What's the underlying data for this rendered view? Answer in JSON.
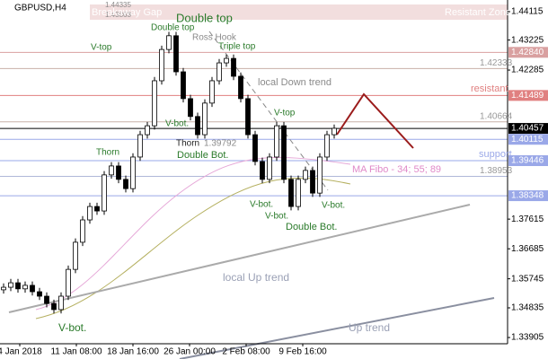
{
  "chart_data": {
    "type": "candlestick",
    "title": "GBPUSD,H4",
    "open": [
      1.354,
      1.3548,
      1.3562,
      1.3543,
      1.3554,
      1.3534,
      1.352,
      1.3497,
      1.3478,
      1.352,
      1.3604,
      1.3689,
      1.3759,
      1.3801,
      1.3787,
      1.39,
      1.3928,
      1.3886,
      1.3857,
      1.3956,
      1.4026,
      1.4054,
      1.4195,
      1.4293,
      1.4336,
      1.4223,
      1.4139,
      1.4083,
      1.4026,
      1.4125,
      1.4195,
      1.4251,
      1.4265,
      1.4209,
      1.4139,
      1.4026,
      1.3942,
      1.3886,
      1.3956,
      1.4054,
      1.3886,
      1.3801,
      1.3886,
      1.3914,
      1.3843,
      1.3956,
      1.4026
    ],
    "high": [
      1.356,
      1.3574,
      1.3574,
      1.3566,
      1.3566,
      1.3546,
      1.3532,
      1.3509,
      1.3532,
      1.3616,
      1.3701,
      1.3771,
      1.3813,
      1.3813,
      1.3912,
      1.394,
      1.394,
      1.3898,
      1.3968,
      1.4038,
      1.4066,
      1.4207,
      1.4305,
      1.4348,
      1.4348,
      1.4235,
      1.4151,
      1.4095,
      1.4137,
      1.4207,
      1.4263,
      1.4277,
      1.4277,
      1.4221,
      1.4151,
      1.4038,
      1.3954,
      1.3968,
      1.4066,
      1.4066,
      1.3898,
      1.3898,
      1.3926,
      1.3926,
      1.3968,
      1.4038,
      1.4058
    ],
    "low": [
      1.3528,
      1.3536,
      1.3531,
      1.3531,
      1.3522,
      1.3508,
      1.3485,
      1.3466,
      1.3466,
      1.3508,
      1.3592,
      1.3677,
      1.3747,
      1.3775,
      1.3775,
      1.3888,
      1.3874,
      1.3845,
      1.3845,
      1.3944,
      1.4014,
      1.4042,
      1.4183,
      1.4281,
      1.4211,
      1.4127,
      1.4071,
      1.4014,
      1.4014,
      1.4113,
      1.4183,
      1.4239,
      1.4197,
      1.4127,
      1.4014,
      1.393,
      1.3874,
      1.3874,
      1.3944,
      1.3874,
      1.3789,
      1.3789,
      1.3874,
      1.3831,
      1.3831,
      1.3944,
      1.4014
    ],
    "close": [
      1.3548,
      1.3562,
      1.3543,
      1.3554,
      1.3534,
      1.352,
      1.3497,
      1.3478,
      1.352,
      1.3604,
      1.3689,
      1.3759,
      1.3801,
      1.3787,
      1.39,
      1.3928,
      1.3886,
      1.3857,
      1.3956,
      1.4026,
      1.4054,
      1.4195,
      1.4293,
      1.4336,
      1.4223,
      1.4139,
      1.4083,
      1.4026,
      1.4125,
      1.4195,
      1.4251,
      1.4265,
      1.4209,
      1.4139,
      1.4026,
      1.3942,
      1.3886,
      1.3956,
      1.4054,
      1.3886,
      1.3801,
      1.3886,
      1.3914,
      1.3843,
      1.3956,
      1.4026,
      1.4046
    ],
    "ylim": [
      1.3371,
      1.4448
    ],
    "yticks": [
      1.44115,
      1.43225,
      1.42285,
      1.37615,
      1.36685,
      1.35745,
      1.34835,
      1.33905
    ],
    "x_labels": [
      "4 Jan 2018",
      "11 Jan 08:00",
      "18 Jan 16:00",
      "26 Jan 00:00",
      "2 Feb 08:00",
      "9 Feb 16:00"
    ],
    "levels": [
      {
        "value": 1.4284,
        "label": "1.42840",
        "color": "#d9a0a0",
        "boxed": true
      },
      {
        "value": 1.42333,
        "label": "1.42333",
        "color": "#c8b0a8",
        "boxed": false
      },
      {
        "value": 1.41489,
        "label": "1.41489",
        "color": "#e08080",
        "boxed": true
      },
      {
        "value": 1.40664,
        "label": "1.40664",
        "color": "#c8b0a8",
        "boxed": false
      },
      {
        "value": 1.40457,
        "label": "1.40457",
        "color": "#000000",
        "boxed": true
      },
      {
        "value": 1.40115,
        "label": "1.40115",
        "color": "#9aa8e8",
        "boxed": true
      },
      {
        "value": 1.39446,
        "label": "1.39446",
        "color": "#9aa8e8",
        "boxed": true
      },
      {
        "value": 1.38953,
        "label": "1.38953",
        "color": "#b0b8d8",
        "boxed": false
      },
      {
        "value": 1.38348,
        "label": "1.38348",
        "color": "#9aa8e8",
        "boxed": true
      }
    ]
  },
  "annotations": [
    "Double top",
    "Double top",
    "Ross Hook",
    "Triple top",
    "V-top",
    "local Down trend",
    "V-bot.",
    "V-top",
    "Thorn",
    "Thorn",
    "1.39792",
    "Double Bot.",
    "MA Fibo - 34; 55; 89",
    "support",
    "resistant",
    "Resistant Zone",
    "V-bot.",
    "V-bot.",
    "V-bot.",
    "Double Bot.",
    "local  Up trend",
    "V-bot.",
    "Up trend",
    "1.44335",
    "1.43868",
    "Breakaway Gap"
  ]
}
